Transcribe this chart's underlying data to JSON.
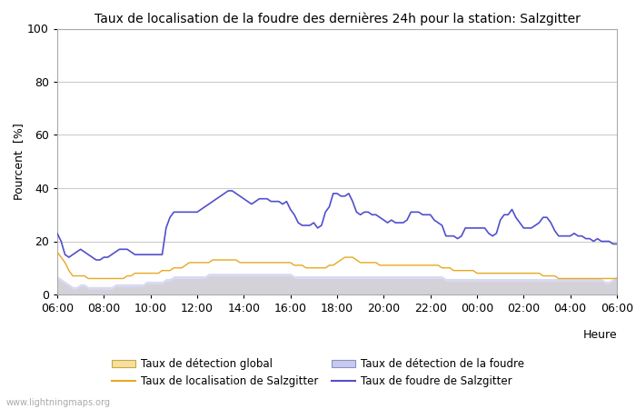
{
  "title": "Taux de localisation de la foudre des dernières 24h pour la station: Salzgitter",
  "xlabel": "Heure",
  "ylabel": "Pourcent  [%]",
  "ylim": [
    0,
    100
  ],
  "yticks": [
    0,
    20,
    40,
    60,
    80,
    100
  ],
  "xtick_labels": [
    "06:00",
    "08:00",
    "10:00",
    "12:00",
    "14:00",
    "16:00",
    "18:00",
    "20:00",
    "22:00",
    "00:00",
    "02:00",
    "04:00",
    "06:00"
  ],
  "watermark": "www.lightningmaps.org",
  "background_color": "#ffffff",
  "plot_bg_color": "#ffffff",
  "grid_color": "#cccccc",
  "n_points": 145,
  "blue_line": [
    23,
    20,
    15,
    14,
    15,
    16,
    17,
    16,
    15,
    14,
    13,
    13,
    14,
    14,
    15,
    16,
    17,
    17,
    17,
    16,
    15,
    15,
    15,
    15,
    15,
    15,
    15,
    15,
    25,
    29,
    31,
    31,
    31,
    31,
    31,
    31,
    31,
    32,
    33,
    34,
    35,
    36,
    37,
    38,
    39,
    39,
    38,
    37,
    36,
    35,
    34,
    35,
    36,
    36,
    36,
    35,
    35,
    35,
    34,
    35,
    32,
    30,
    27,
    26,
    26,
    26,
    27,
    25,
    26,
    31,
    33,
    38,
    38,
    37,
    37,
    38,
    35,
    31,
    30,
    31,
    31,
    30,
    30,
    29,
    28,
    27,
    28,
    27,
    27,
    27,
    28,
    31,
    31,
    31,
    30,
    30,
    30,
    28,
    27,
    26,
    22,
    22,
    22,
    21,
    22,
    25,
    25,
    25,
    25,
    25,
    25,
    23,
    22,
    23,
    28,
    30,
    30,
    32,
    29,
    27,
    25,
    25,
    25,
    26,
    27,
    29,
    29,
    27,
    24,
    22,
    22,
    22,
    22,
    23,
    22,
    22,
    21,
    21,
    20,
    21,
    20,
    20,
    20,
    19,
    19
  ],
  "orange_line": [
    16,
    14,
    12,
    9,
    7,
    7,
    7,
    7,
    6,
    6,
    6,
    6,
    6,
    6,
    6,
    6,
    6,
    6,
    7,
    7,
    8,
    8,
    8,
    8,
    8,
    8,
    8,
    9,
    9,
    9,
    10,
    10,
    10,
    11,
    12,
    12,
    12,
    12,
    12,
    12,
    13,
    13,
    13,
    13,
    13,
    13,
    13,
    12,
    12,
    12,
    12,
    12,
    12,
    12,
    12,
    12,
    12,
    12,
    12,
    12,
    12,
    11,
    11,
    11,
    10,
    10,
    10,
    10,
    10,
    10,
    11,
    11,
    12,
    13,
    14,
    14,
    14,
    13,
    12,
    12,
    12,
    12,
    12,
    11,
    11,
    11,
    11,
    11,
    11,
    11,
    11,
    11,
    11,
    11,
    11,
    11,
    11,
    11,
    11,
    10,
    10,
    10,
    9,
    9,
    9,
    9,
    9,
    9,
    8,
    8,
    8,
    8,
    8,
    8,
    8,
    8,
    8,
    8,
    8,
    8,
    8,
    8,
    8,
    8,
    8,
    7,
    7,
    7,
    7,
    6,
    6,
    6,
    6,
    6,
    6,
    6,
    6,
    6,
    6,
    6,
    6,
    6,
    6,
    6,
    6
  ],
  "blue_fill": [
    7,
    6,
    5,
    4,
    3,
    3,
    4,
    4,
    3,
    3,
    3,
    3,
    3,
    3,
    3,
    4,
    4,
    4,
    4,
    4,
    4,
    4,
    4,
    5,
    5,
    5,
    5,
    5,
    6,
    6,
    7,
    7,
    7,
    7,
    7,
    7,
    7,
    7,
    7,
    8,
    8,
    8,
    8,
    8,
    8,
    8,
    8,
    8,
    8,
    8,
    8,
    8,
    8,
    8,
    8,
    8,
    8,
    8,
    8,
    8,
    8,
    7,
    7,
    7,
    7,
    7,
    7,
    7,
    7,
    7,
    7,
    7,
    7,
    7,
    7,
    7,
    7,
    7,
    7,
    7,
    7,
    7,
    7,
    7,
    7,
    7,
    7,
    7,
    7,
    7,
    7,
    7,
    7,
    7,
    7,
    7,
    7,
    7,
    7,
    7,
    6,
    6,
    6,
    6,
    6,
    6,
    6,
    6,
    6,
    6,
    6,
    6,
    6,
    6,
    6,
    6,
    6,
    6,
    6,
    6,
    6,
    6,
    6,
    6,
    6,
    6,
    6,
    6,
    6,
    6,
    6,
    6,
    6,
    6,
    6,
    6,
    6,
    6,
    6,
    6,
    6,
    5,
    5,
    6,
    7
  ],
  "tan_fill": [
    6,
    5,
    4,
    3,
    2,
    2,
    3,
    3,
    2,
    2,
    2,
    2,
    2,
    2,
    2,
    3,
    3,
    3,
    3,
    3,
    3,
    3,
    3,
    4,
    4,
    4,
    4,
    4,
    5,
    5,
    6,
    6,
    6,
    6,
    6,
    6,
    6,
    6,
    6,
    7,
    7,
    7,
    7,
    7,
    7,
    7,
    7,
    7,
    7,
    7,
    7,
    7,
    7,
    7,
    7,
    7,
    7,
    7,
    7,
    7,
    7,
    6,
    6,
    6,
    6,
    6,
    6,
    6,
    6,
    6,
    6,
    6,
    6,
    6,
    6,
    6,
    6,
    6,
    6,
    6,
    6,
    6,
    6,
    6,
    6,
    6,
    6,
    6,
    6,
    6,
    6,
    6,
    6,
    6,
    6,
    6,
    6,
    6,
    6,
    6,
    5,
    5,
    5,
    5,
    5,
    5,
    5,
    5,
    5,
    5,
    5,
    5,
    5,
    5,
    5,
    5,
    5,
    5,
    5,
    5,
    5,
    5,
    5,
    5,
    5,
    5,
    5,
    5,
    5,
    5,
    5,
    5,
    5,
    5,
    5,
    5,
    5,
    5,
    5,
    5,
    5,
    4,
    4,
    5,
    6
  ]
}
